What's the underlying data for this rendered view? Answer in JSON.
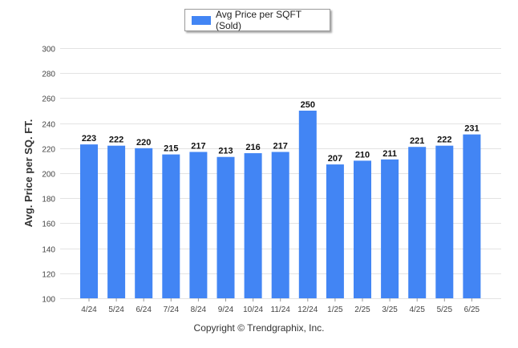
{
  "chart_data": {
    "type": "bar",
    "categories": [
      "4/24",
      "5/24",
      "6/24",
      "7/24",
      "8/24",
      "9/24",
      "10/24",
      "11/24",
      "12/24",
      "1/25",
      "2/25",
      "3/25",
      "4/25",
      "5/25",
      "6/25"
    ],
    "series": [
      {
        "name": "Avg Price per SQFT (Sold)",
        "values": [
          223,
          222,
          220,
          215,
          217,
          213,
          216,
          217,
          250,
          207,
          210,
          211,
          221,
          222,
          231
        ]
      }
    ],
    "ylabel": "Avg. Price per SQ. FT.",
    "ylim": [
      100,
      300
    ],
    "yticks": [
      100,
      120,
      140,
      160,
      180,
      200,
      220,
      240,
      260,
      280,
      300
    ],
    "grid": true,
    "legend_position": "top-center",
    "bar_color": "#4285f4",
    "show_data_labels": true
  },
  "footer": {
    "copyright": "Copyright © Trendgraphix, Inc."
  }
}
